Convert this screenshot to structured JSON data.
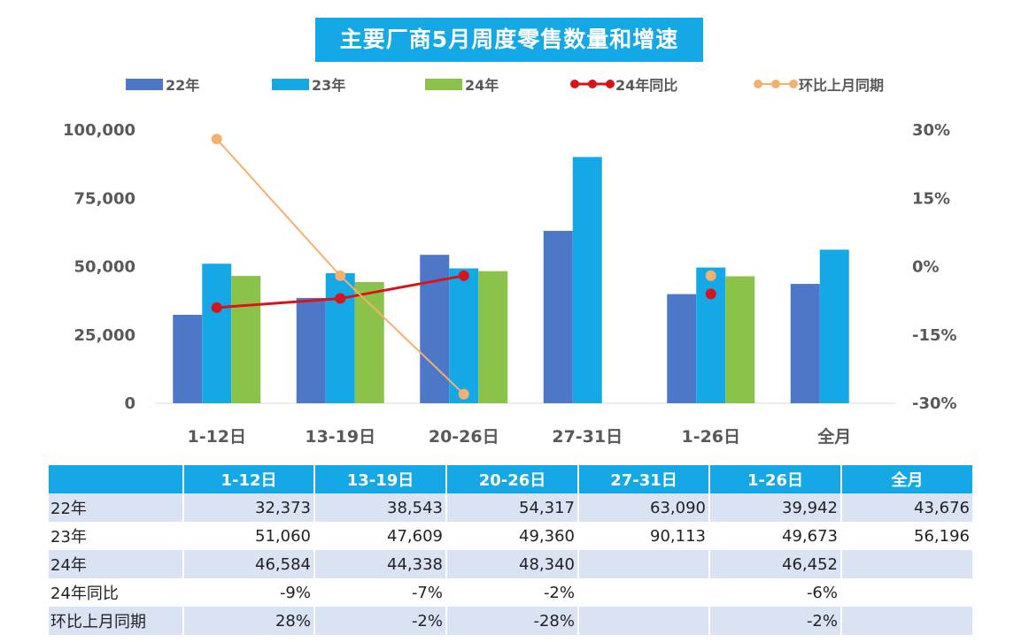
{
  "chart_data": {
    "type": "bar",
    "title": "主要厂商5月周度零售数量和增速",
    "categories": [
      "1-12日",
      "13-19日",
      "20-26日",
      "27-31日",
      "1-26日",
      "全月"
    ],
    "series": [
      {
        "name": "22年",
        "kind": "bar",
        "color": "#4d78c8",
        "values": [
          32373,
          38543,
          54317,
          63090,
          39942,
          43676
        ]
      },
      {
        "name": "23年",
        "kind": "bar",
        "color": "#14a9e6",
        "values": [
          51060,
          47609,
          49360,
          90113,
          49673,
          56196
        ]
      },
      {
        "name": "24年",
        "kind": "bar",
        "color": "#8bc34a",
        "values": [
          46584,
          44338,
          48340,
          null,
          46452,
          null
        ]
      },
      {
        "name": "24年同比",
        "kind": "line",
        "axis": "right",
        "color": "#d7141a",
        "values": [
          -9,
          -7,
          -2,
          null,
          -6,
          null
        ]
      },
      {
        "name": "环比上月同期",
        "kind": "line",
        "axis": "right",
        "color": "#f4b06c",
        "values": [
          28,
          -2,
          -28,
          null,
          -2,
          null
        ]
      }
    ],
    "yleft": {
      "min": 0,
      "max": 100000,
      "ticks": [
        "0",
        "25,000",
        "50,000",
        "75,000",
        "100,000"
      ]
    },
    "yright": {
      "min": -30,
      "max": 30,
      "ticks": [
        "-30%",
        "-15%",
        "0%",
        "15%",
        "30%"
      ]
    },
    "grid": false,
    "legend": "top"
  },
  "table": {
    "headers": [
      "",
      "1-12日",
      "13-19日",
      "20-26日",
      "27-31日",
      "1-26日",
      "全月"
    ],
    "rows": [
      {
        "label": "22年",
        "cells": [
          "32,373",
          "38,543",
          "54,317",
          "63,090",
          "39,942",
          "43,676"
        ]
      },
      {
        "label": "23年",
        "cells": [
          "51,060",
          "47,609",
          "49,360",
          "90,113",
          "49,673",
          "56,196"
        ]
      },
      {
        "label": "24年",
        "cells": [
          "46,584",
          "44,338",
          "48,340",
          "",
          "46,452",
          ""
        ]
      },
      {
        "label": "24年同比",
        "cells": [
          "-9%",
          "-7%",
          "-2%",
          "",
          "-6%",
          ""
        ]
      },
      {
        "label": "环比上月同期",
        "cells": [
          "28%",
          "-2%",
          "-28%",
          "",
          "-2%",
          ""
        ]
      }
    ]
  }
}
